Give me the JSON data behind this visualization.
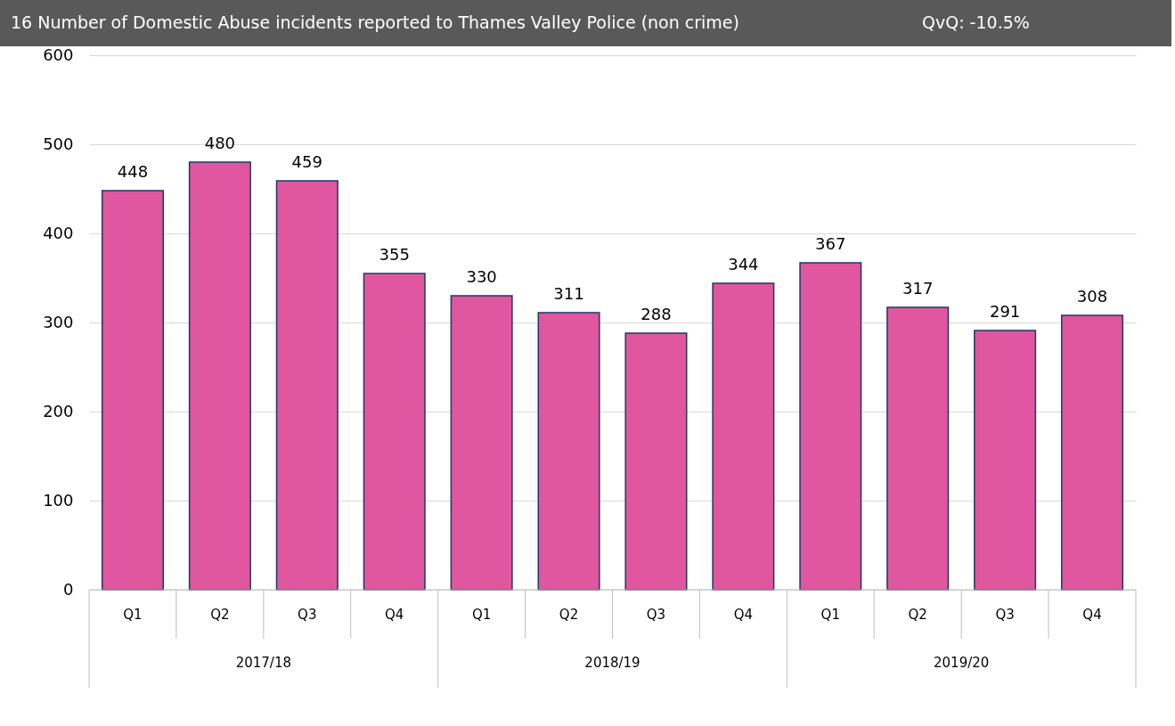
{
  "chart_data": {
    "type": "bar",
    "title": "16   Number of Domestic Abuse incidents reported to Thames Valley Police (non crime)",
    "annotations": [
      "QvQ: -10.5%",
      "2017/18",
      "2018/19",
      "2019/20"
    ],
    "categories": [
      "Q1",
      "Q2",
      "Q3",
      "Q4",
      "Q1",
      "Q2",
      "Q3",
      "Q4",
      "Q1",
      "Q2",
      "Q3",
      "Q4"
    ],
    "values": [
      448,
      480,
      459,
      355,
      330,
      311,
      288,
      344,
      367,
      317,
      291,
      308
    ],
    "color": "#e0579f",
    "ylim": [
      0,
      600
    ],
    "yticks": [
      0,
      100,
      200,
      300,
      400,
      500,
      600
    ],
    "grid": "y",
    "data_labels": true
  }
}
